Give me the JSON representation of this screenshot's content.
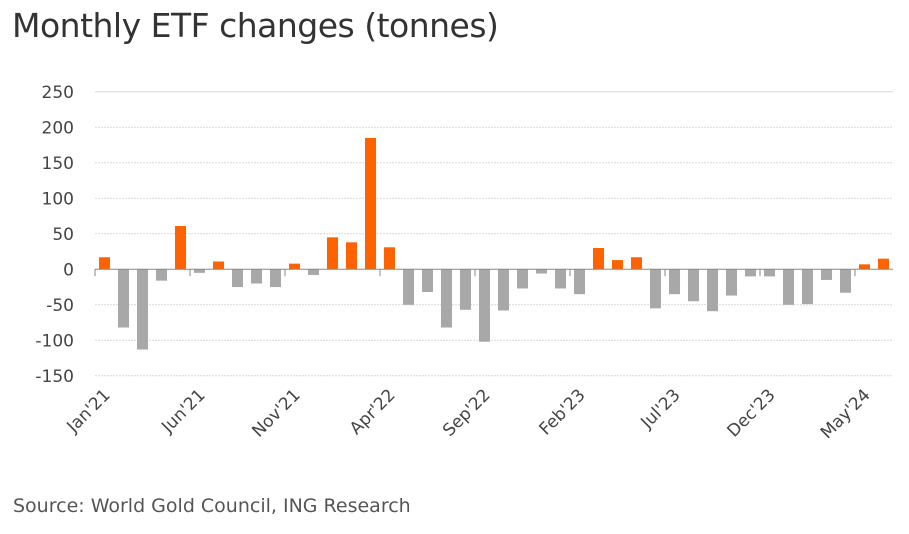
{
  "chart_data": {
    "type": "bar",
    "title": "Monthly ETF changes (tonnes)",
    "source": "Source: World Gold Council, ING Research",
    "xlabel": "",
    "ylabel": "",
    "ylim": [
      -150,
      250
    ],
    "yticks": [
      250,
      200,
      150,
      100,
      50,
      0,
      -50,
      -100,
      -150
    ],
    "grid": true,
    "xtick_labels": [
      "Jan'21",
      "Jun'21",
      "Nov'21",
      "Apr'22",
      "Sep'22",
      "Feb'23",
      "Jul'23",
      "Dec'23",
      "May'24"
    ],
    "categories": [
      "Jan'21",
      "Feb'21",
      "Mar'21",
      "Apr'21",
      "May'21",
      "Jun'21",
      "Jul'21",
      "Aug'21",
      "Sep'21",
      "Oct'21",
      "Nov'21",
      "Dec'21",
      "Jan'22",
      "Feb'22",
      "Mar'22",
      "Apr'22",
      "May'22",
      "Jun'22",
      "Jul'22",
      "Aug'22",
      "Sep'22",
      "Oct'22",
      "Nov'22",
      "Dec'22",
      "Jan'23",
      "Feb'23",
      "Mar'23",
      "Apr'23",
      "May'23",
      "Jun'23",
      "Jul'23",
      "Aug'23",
      "Sep'23",
      "Oct'23",
      "Nov'23",
      "Dec'23",
      "Jan'24",
      "Feb'24",
      "Mar'24",
      "Apr'24",
      "May'24",
      "Jun'24"
    ],
    "values": [
      17,
      -82,
      -113,
      -16,
      61,
      -5,
      11,
      -25,
      -20,
      -25,
      8,
      -8,
      45,
      38,
      185,
      31,
      -50,
      -32,
      -82,
      -57,
      -102,
      -58,
      -27,
      -6,
      -27,
      -35,
      30,
      13,
      17,
      -55,
      -35,
      -45,
      -59,
      -37,
      -10,
      -10,
      -50,
      -49,
      -15,
      -33,
      7,
      15
    ],
    "colors": {
      "positive": "#FF6200",
      "negative": "#A8A8A8"
    }
  }
}
